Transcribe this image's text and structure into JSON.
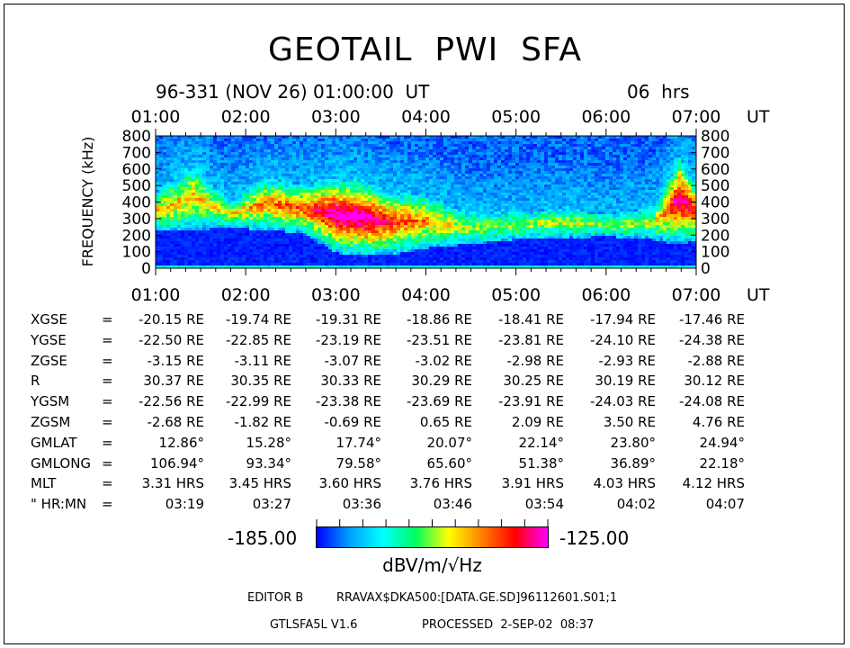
{
  "header": {
    "title": "GEOTAIL  PWI  SFA",
    "date_line": "96-331 (NOV 26) 01:00:00  UT",
    "duration": "06  hrs"
  },
  "chart_data": {
    "type": "heatmap",
    "ylabel": "FREQUENCY (kHz)",
    "x_ticks": [
      "01:00",
      "02:00",
      "03:00",
      "04:00",
      "05:00",
      "06:00",
      "07:00"
    ],
    "x_unit": "UT",
    "y_ticks": [
      0,
      100,
      200,
      300,
      400,
      500,
      600,
      700,
      800
    ],
    "ylim": [
      0,
      800
    ],
    "xlim_hours": [
      1,
      7
    ],
    "color_scale": {
      "min_label": "-185.00",
      "max_label": "-125.00",
      "unit": "dBV/m/√Hz",
      "colors": [
        "#0000ff",
        "#00a0ff",
        "#00ffff",
        "#00ff60",
        "#ffff00",
        "#ff8000",
        "#ff0000",
        "#ff00ff"
      ]
    },
    "intensity_profile": [
      {
        "hour": 1.0,
        "low_edge_khz": 230,
        "high_edge_khz": 480,
        "peak": 0.55
      },
      {
        "hour": 1.4,
        "low_edge_khz": 240,
        "high_edge_khz": 650,
        "peak": 0.55
      },
      {
        "hour": 1.8,
        "low_edge_khz": 250,
        "high_edge_khz": 420,
        "peak": 0.5
      },
      {
        "hour": 2.2,
        "low_edge_khz": 240,
        "high_edge_khz": 560,
        "peak": 0.65
      },
      {
        "hour": 2.6,
        "low_edge_khz": 220,
        "high_edge_khz": 520,
        "peak": 0.7
      },
      {
        "hour": 3.0,
        "low_edge_khz": 100,
        "high_edge_khz": 560,
        "peak": 0.95
      },
      {
        "hour": 3.3,
        "low_edge_khz": 80,
        "high_edge_khz": 540,
        "peak": 0.95
      },
      {
        "hour": 3.6,
        "low_edge_khz": 90,
        "high_edge_khz": 480,
        "peak": 0.75
      },
      {
        "hour": 4.0,
        "low_edge_khz": 130,
        "high_edge_khz": 460,
        "peak": 0.6
      },
      {
        "hour": 4.4,
        "low_edge_khz": 150,
        "high_edge_khz": 360,
        "peak": 0.45
      },
      {
        "hour": 5.0,
        "low_edge_khz": 180,
        "high_edge_khz": 350,
        "peak": 0.4
      },
      {
        "hour": 5.5,
        "low_edge_khz": 190,
        "high_edge_khz": 380,
        "peak": 0.45
      },
      {
        "hour": 6.0,
        "low_edge_khz": 200,
        "high_edge_khz": 340,
        "peak": 0.4
      },
      {
        "hour": 6.5,
        "low_edge_khz": 180,
        "high_edge_khz": 380,
        "peak": 0.45
      },
      {
        "hour": 6.8,
        "low_edge_khz": 150,
        "high_edge_khz": 700,
        "peak": 0.9
      },
      {
        "hour": 7.0,
        "low_edge_khz": 180,
        "high_edge_khz": 500,
        "peak": 0.75
      }
    ]
  },
  "orbit_table": {
    "rows": [
      {
        "label": "XGSE",
        "values": [
          "-20.15 RE",
          "-19.74 RE",
          "-19.31 RE",
          "-18.86 RE",
          "-18.41 RE",
          "-17.94 RE",
          "-17.46 RE"
        ]
      },
      {
        "label": "YGSE",
        "values": [
          "-22.50 RE",
          "-22.85 RE",
          "-23.19 RE",
          "-23.51 RE",
          "-23.81 RE",
          "-24.10 RE",
          "-24.38 RE"
        ]
      },
      {
        "label": "ZGSE",
        "values": [
          "-3.15 RE",
          "-3.11 RE",
          "-3.07 RE",
          "-3.02 RE",
          "-2.98 RE",
          "-2.93 RE",
          "-2.88 RE"
        ]
      },
      {
        "label": "R",
        "values": [
          "30.37 RE",
          "30.35 RE",
          "30.33 RE",
          "30.29 RE",
          "30.25 RE",
          "30.19 RE",
          "30.12 RE"
        ]
      },
      {
        "label": "YGSM",
        "values": [
          "-22.56 RE",
          "-22.99 RE",
          "-23.38 RE",
          "-23.69 RE",
          "-23.91 RE",
          "-24.03 RE",
          "-24.08 RE"
        ]
      },
      {
        "label": "ZGSM",
        "values": [
          "-2.68 RE",
          "-1.82 RE",
          "-0.69 RE",
          "0.65 RE",
          "2.09 RE",
          "3.50 RE",
          "4.76 RE"
        ]
      },
      {
        "label": "GMLAT",
        "values": [
          "12.86°",
          "15.28°",
          "17.74°",
          "20.07°",
          "22.14°",
          "23.80°",
          "24.94°"
        ]
      },
      {
        "label": "GMLONG",
        "values": [
          "106.94°",
          "93.34°",
          "79.58°",
          "65.60°",
          "51.38°",
          "36.89°",
          "22.18°"
        ]
      },
      {
        "label": "MLT",
        "values": [
          "3.31 HRS",
          "3.45 HRS",
          "3.60 HRS",
          "3.76 HRS",
          "3.91 HRS",
          "4.03 HRS",
          "4.12 HRS"
        ]
      },
      {
        "label": "\" HR:MN",
        "values": [
          "03:19",
          "03:27",
          "03:36",
          "03:46",
          "03:54",
          "04:02",
          "04:07"
        ]
      }
    ]
  },
  "footer": {
    "editor": "EDITOR B",
    "path": "RRAVAX$DKA500:[DATA.GE.SD]96112601.S01;1",
    "program": "GTLSFA5L V1.6",
    "processed": "PROCESSED  2-SEP-02  08:37"
  }
}
